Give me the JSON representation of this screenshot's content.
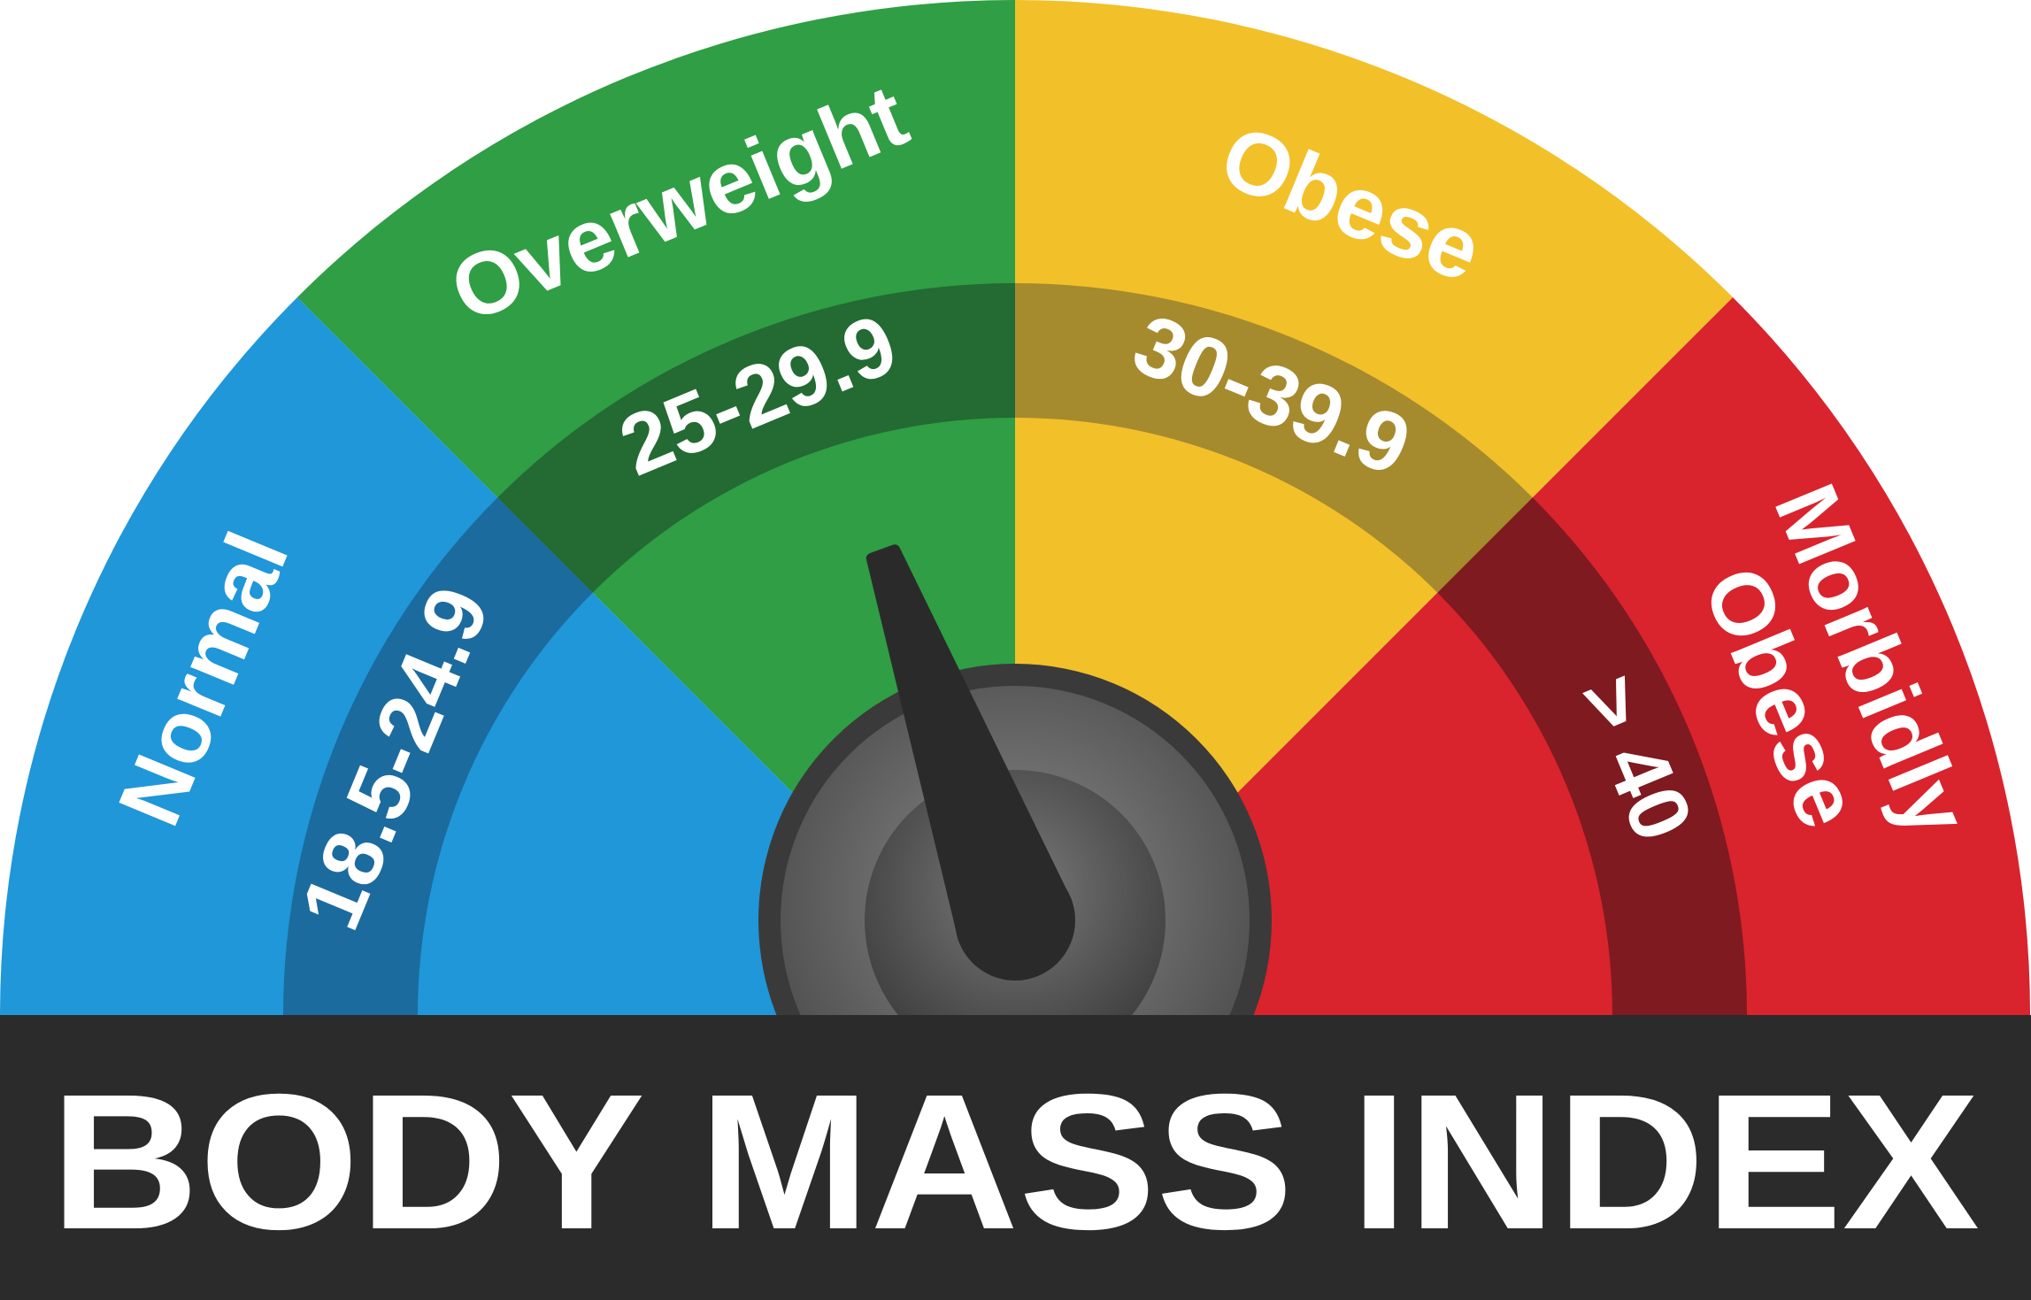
{
  "title": "BODY MASS INDEX",
  "segments": [
    {
      "name_lines": [
        "Normal"
      ],
      "range": "18.5-24.9",
      "color": "#1f97d9",
      "color_light": "#2aa6e4",
      "band_color": "#1b6b9e"
    },
    {
      "name_lines": [
        "Overweight"
      ],
      "range": "25-29.9",
      "color": "#2f9e44",
      "color_light": "#3aa94c",
      "band_color": "#236a33"
    },
    {
      "name_lines": [
        "Obese"
      ],
      "range": "30-39.9",
      "color": "#f2c029",
      "color_light": "#f5cd3a",
      "band_color": "#a68a2e"
    },
    {
      "name_lines": [
        "Morbidly",
        "Obese"
      ],
      "range": "> 40",
      "color": "#d9232d",
      "color_light": "#e12a32",
      "band_color": "#7e1a20"
    }
  ],
  "needle": {
    "position_fraction": 0.39,
    "color": "#2a2a2a"
  },
  "colors": {
    "title_bar": "#2b2b2b",
    "hub_outer": "#3a3a3a",
    "hub_inner": "#707070"
  }
}
